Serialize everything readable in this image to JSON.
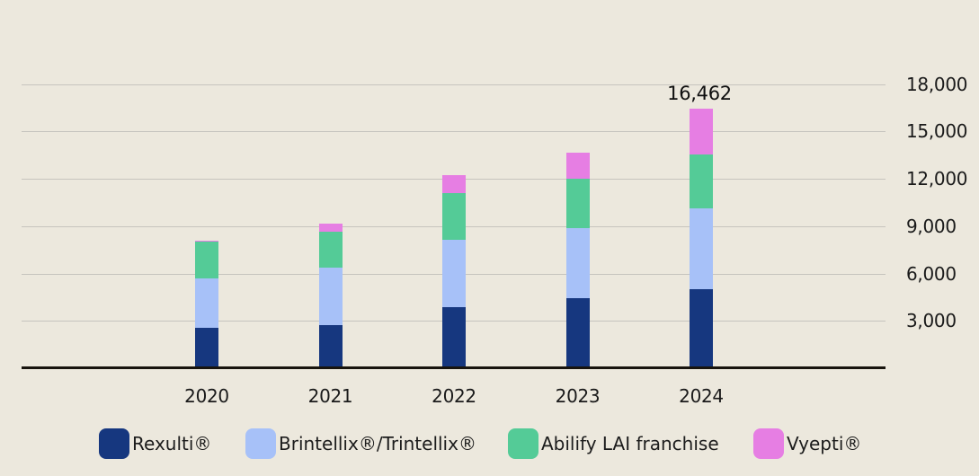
{
  "chart_data": {
    "type": "bar",
    "stacked": true,
    "title": "",
    "xlabel": "",
    "ylabel": "",
    "categories": [
      "2020",
      "2021",
      "2022",
      "2023",
      "2024"
    ],
    "series": [
      {
        "name": "Rexulti®",
        "color": "#16377F",
        "values": [
          2550,
          2750,
          3850,
          4450,
          5022
        ]
      },
      {
        "name": "Brintellix®/Trintellix®",
        "color": "#A7C1F8",
        "values": [
          3150,
          3600,
          4300,
          4400,
          5080
        ]
      },
      {
        "name": "Abilify LAI franchise",
        "color": "#54CB97",
        "values": [
          2300,
          2300,
          2950,
          3150,
          3442
        ]
      },
      {
        "name": "Vyepti®",
        "color": "#E67EE3",
        "values": [
          100,
          500,
          1100,
          1650,
          2918
        ]
      }
    ],
    "stack_totals": [
      8100,
      9150,
      12200,
      13650,
      16462
    ],
    "data_labels": [
      {
        "category": "2024",
        "label": "16,462"
      }
    ],
    "y_axis": {
      "position": "right",
      "ylim": [
        0,
        18900
      ],
      "ticks": [
        {
          "value": 18000,
          "label": "18,000"
        },
        {
          "value": 15000,
          "label": "15,000"
        },
        {
          "value": 12000,
          "label": "12,000"
        },
        {
          "value": 9000,
          "label": "9,000"
        },
        {
          "value": 6000,
          "label": "6,000"
        },
        {
          "value": 3000,
          "label": "3,000"
        }
      ]
    },
    "grid": "horizontal",
    "legend": {
      "position": "bottom",
      "items": [
        "Rexulti®",
        "Brintellix®/Trintellix®",
        "Abilify LAI franchise",
        "Vyepti®"
      ]
    },
    "colors": {
      "background": "#ECE8DD",
      "gridline": "#C6C4BE",
      "axis_line": "#18140E",
      "text": "#1A1A1A"
    }
  }
}
